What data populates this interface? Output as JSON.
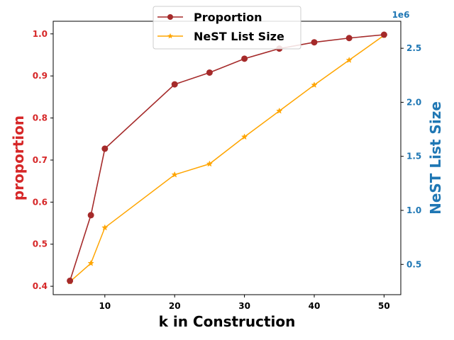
{
  "chart_data": {
    "type": "line",
    "xlabel": "k in Construction",
    "ylabel_left": "proportion",
    "ylabel_right": "NeST List Size",
    "right_axis_multiplier": "1e6",
    "xlim": [
      2.6,
      52.4
    ],
    "ylim_left": [
      0.38,
      1.03
    ],
    "ylim_right": [
      0.22,
      2.75
    ],
    "x_ticks": [
      10,
      20,
      30,
      40,
      50
    ],
    "y_left_ticks": [
      0.4,
      0.5,
      0.6,
      0.7,
      0.8,
      0.9,
      1.0
    ],
    "y_right_ticks": [
      0.5,
      1.0,
      1.5,
      2.0,
      2.5
    ],
    "x": [
      5,
      8,
      10,
      20,
      25,
      30,
      35,
      40,
      45,
      50
    ],
    "series": [
      {
        "name": "Proportion",
        "axis": "left",
        "color": "#a52a2a",
        "marker": "circle",
        "values": [
          0.413,
          0.569,
          0.727,
          0.88,
          0.908,
          0.941,
          0.965,
          0.98,
          0.99,
          0.998
        ]
      },
      {
        "name": "NeST List Size",
        "axis": "right",
        "color": "#ffa500",
        "marker": "star",
        "values": [
          0.34,
          0.51,
          0.84,
          1.33,
          1.43,
          1.68,
          1.92,
          2.16,
          2.39,
          2.62
        ]
      }
    ],
    "legend_position": "top-center",
    "grid": false,
    "colors": {
      "left_axis": "#d62728",
      "right_axis": "#1f77b4"
    }
  }
}
